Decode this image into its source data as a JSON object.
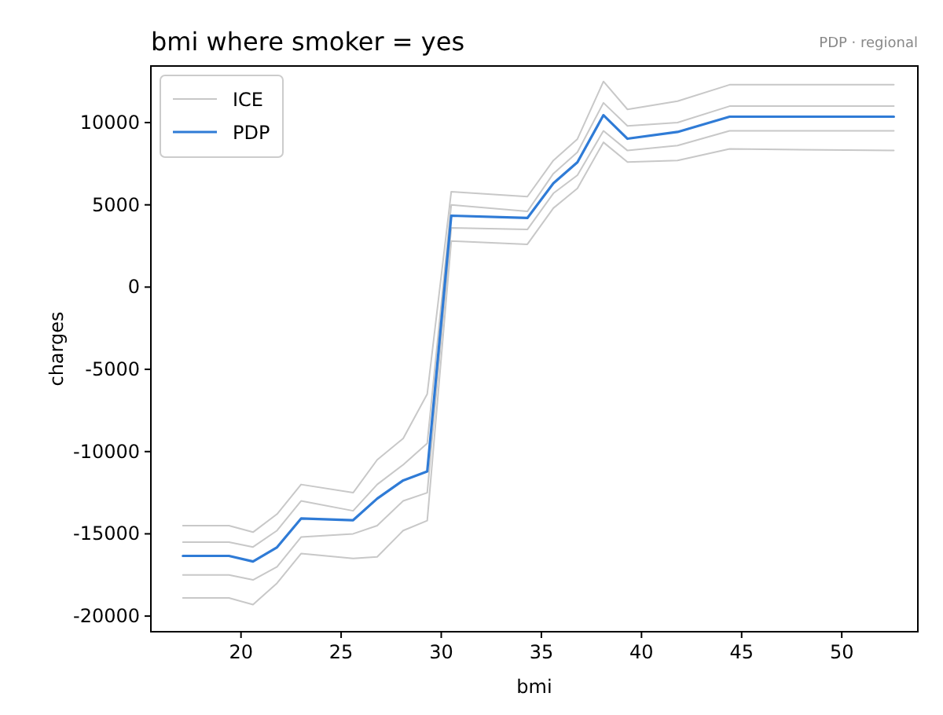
{
  "chart_data": {
    "type": "line",
    "title": "bmi where smoker = yes",
    "xlabel": "bmi",
    "ylabel": "charges",
    "annotations": [
      "PDP · regional"
    ],
    "x": [
      17.1,
      19.4,
      20.6,
      21.8,
      23.0,
      25.6,
      26.8,
      28.1,
      29.3,
      30.5,
      34.3,
      35.6,
      36.8,
      38.1,
      39.3,
      41.8,
      44.4,
      52.6
    ],
    "series": [
      {
        "name": "ICE",
        "color": "#c8c8c8",
        "values": [
          -14500,
          -14500,
          -14900,
          -13800,
          -12000,
          -12500,
          -10500,
          -9200,
          -6500,
          5800,
          5500,
          7700,
          9000,
          12500,
          10800,
          11300,
          12300,
          12300
        ]
      },
      {
        "color": "#c8c8c8",
        "values": [
          -15500,
          -15500,
          -15800,
          -14800,
          -13000,
          -13600,
          -12000,
          -10800,
          -9500,
          5000,
          4600,
          6900,
          8200,
          11200,
          9800,
          10000,
          11000,
          11000
        ]
      },
      {
        "color": "#c8c8c8",
        "values": [
          -17500,
          -17500,
          -17800,
          -17000,
          -15200,
          -15000,
          -14500,
          -13000,
          -12500,
          3600,
          3500,
          5700,
          6800,
          9500,
          8300,
          8600,
          9500,
          9500
        ]
      },
      {
        "color": "#c8c8c8",
        "values": [
          -18900,
          -18900,
          -19300,
          -18000,
          -16200,
          -16500,
          -16400,
          -14800,
          -14200,
          2800,
          2600,
          4800,
          6000,
          8800,
          7600,
          7700,
          8400,
          8300
        ]
      },
      {
        "name": "PDP",
        "color": "#2f7bd6",
        "values": [
          -16340,
          -16340,
          -16680,
          -15820,
          -14070,
          -14170,
          -12860,
          -11750,
          -11210,
          4340,
          4200,
          6310,
          7590,
          10450,
          9020,
          9430,
          10360,
          10360
        ]
      }
    ],
    "xlim": [
      15.5,
      53.8
    ],
    "xticks": [
      20,
      25,
      30,
      35,
      40,
      45,
      50
    ],
    "ylim": [
      -20950,
      13440
    ],
    "yticks": [
      -20000,
      -15000,
      -10000,
      -5000,
      0,
      5000,
      10000
    ],
    "grid": false,
    "legend": "top left",
    "marker": "none",
    "line_style": "solid"
  }
}
